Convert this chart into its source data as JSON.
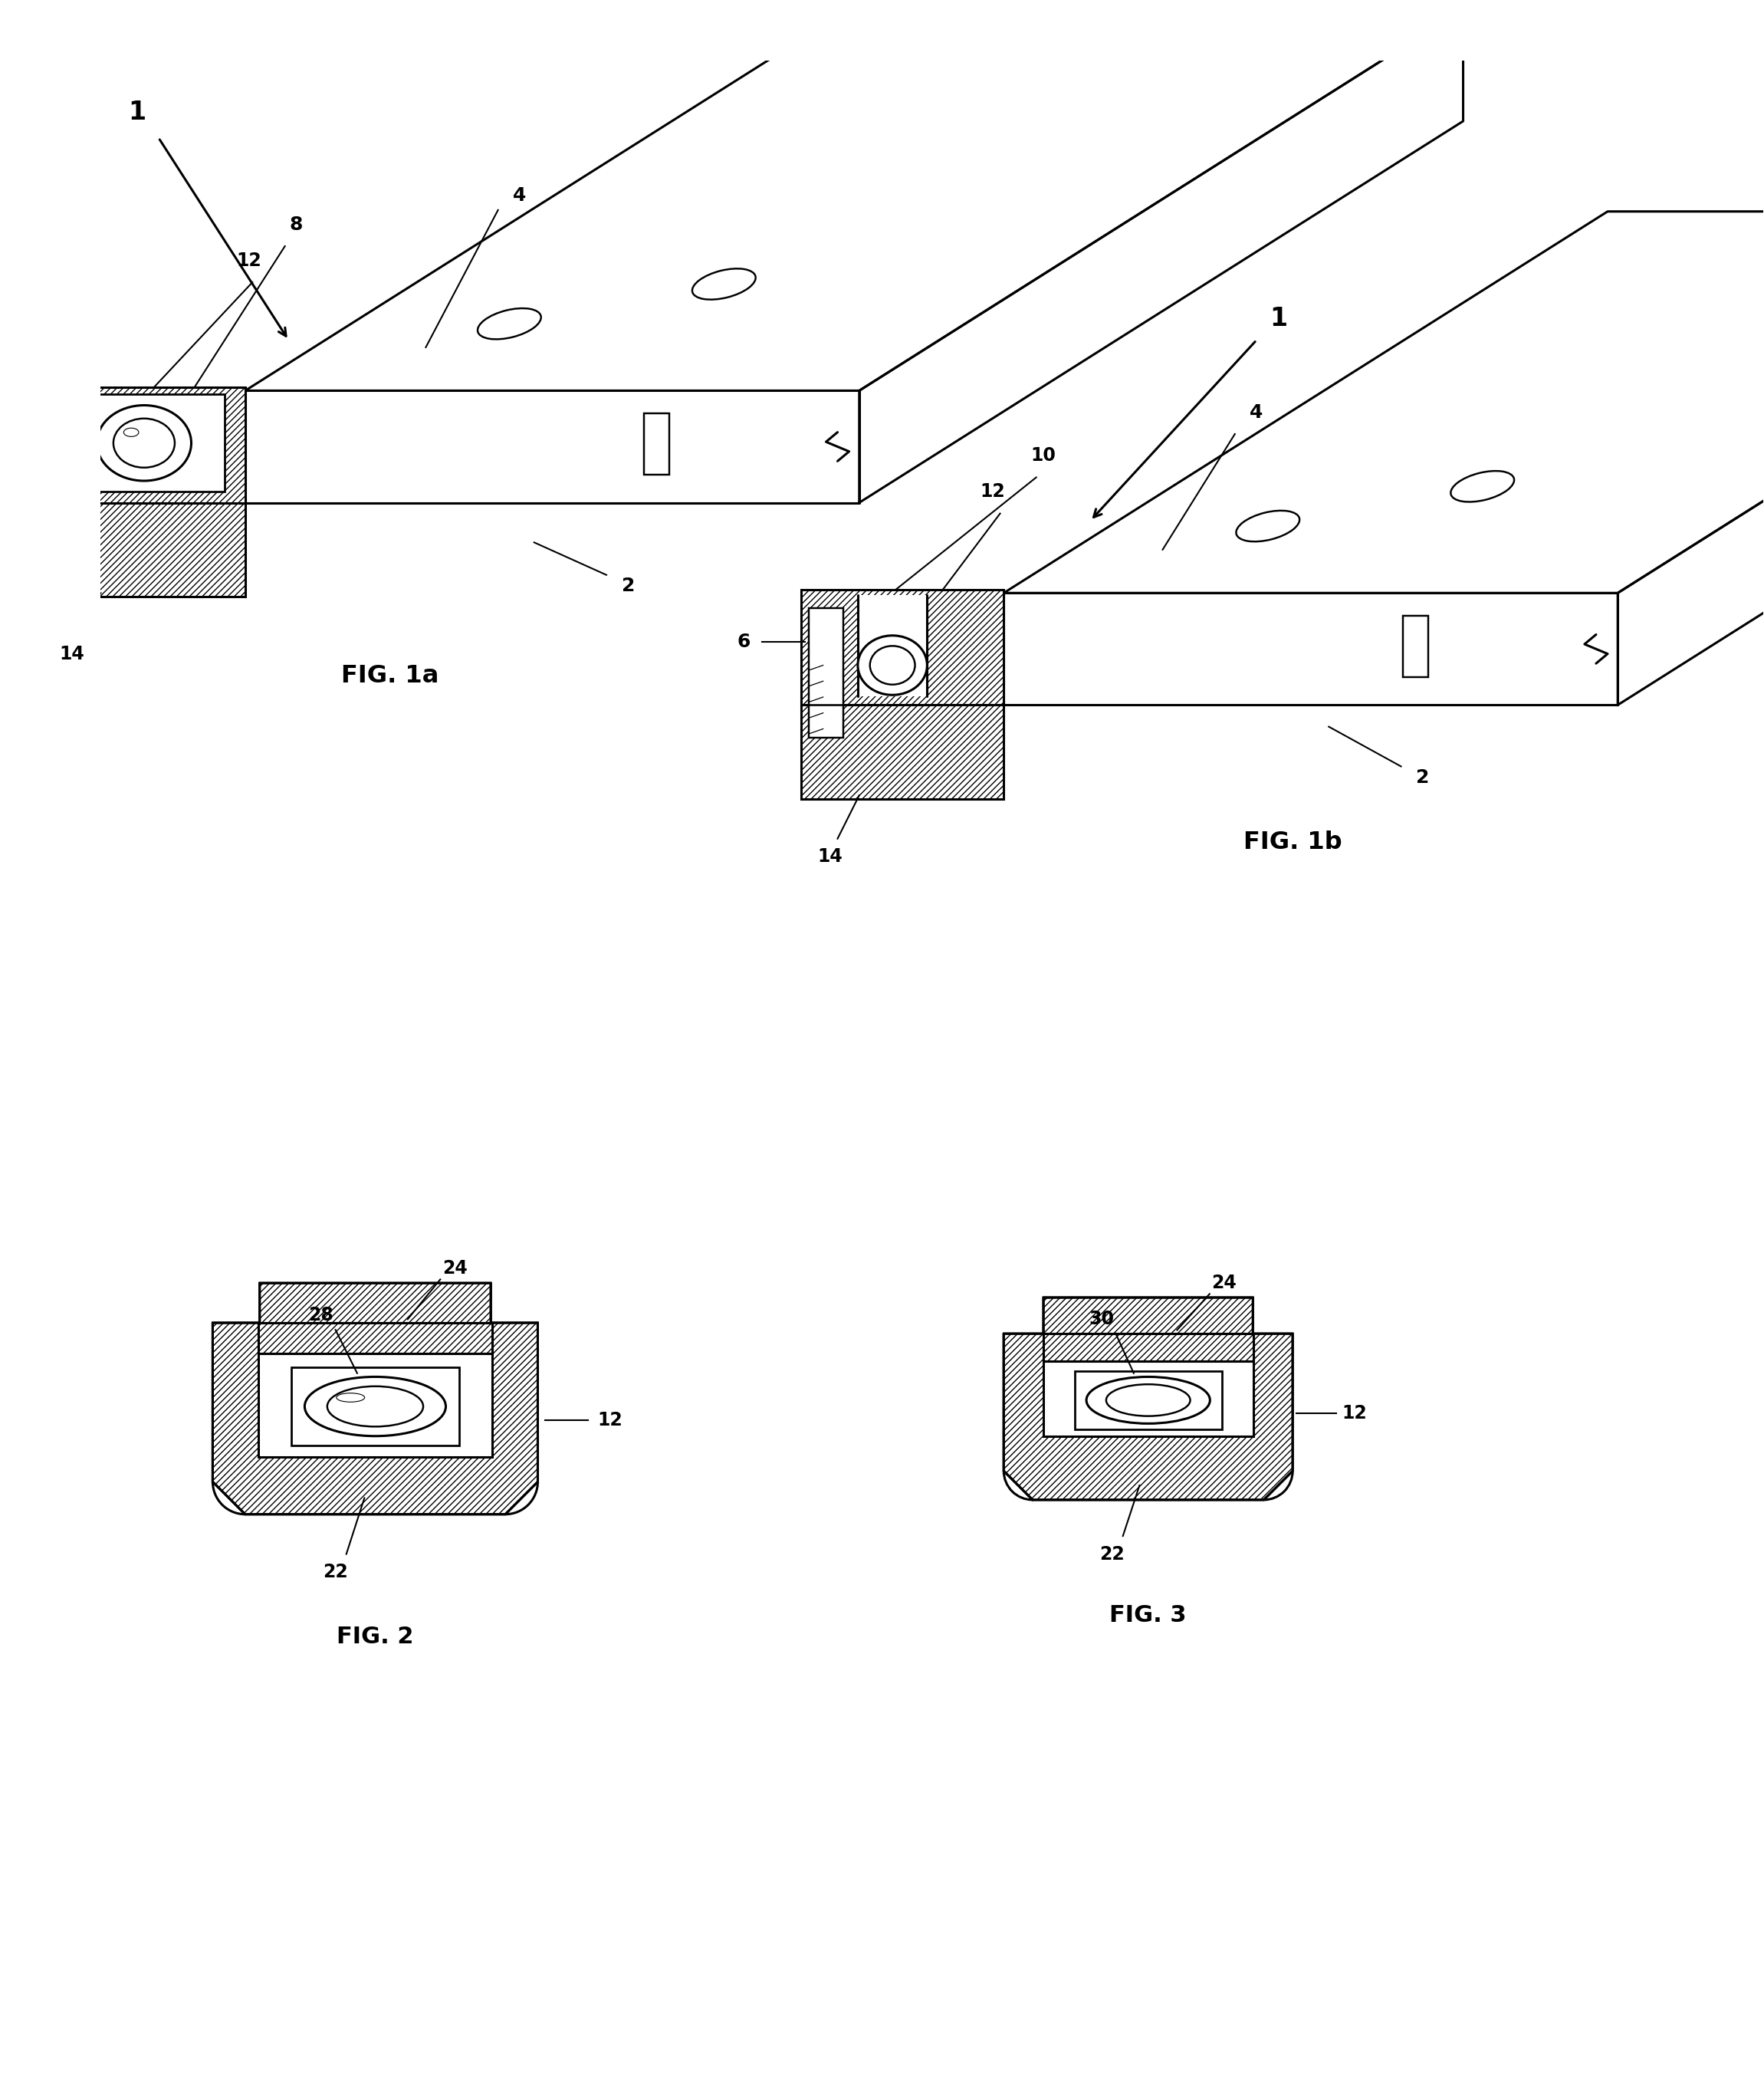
{
  "bg_color": "#ffffff",
  "line_color": "#000000",
  "fig_width": 23.01,
  "fig_height": 27.32,
  "fig1a_label": "FIG. 1a",
  "fig1b_label": "FIG. 1b",
  "fig2_label": "FIG. 2",
  "fig3_label": "FIG. 3"
}
